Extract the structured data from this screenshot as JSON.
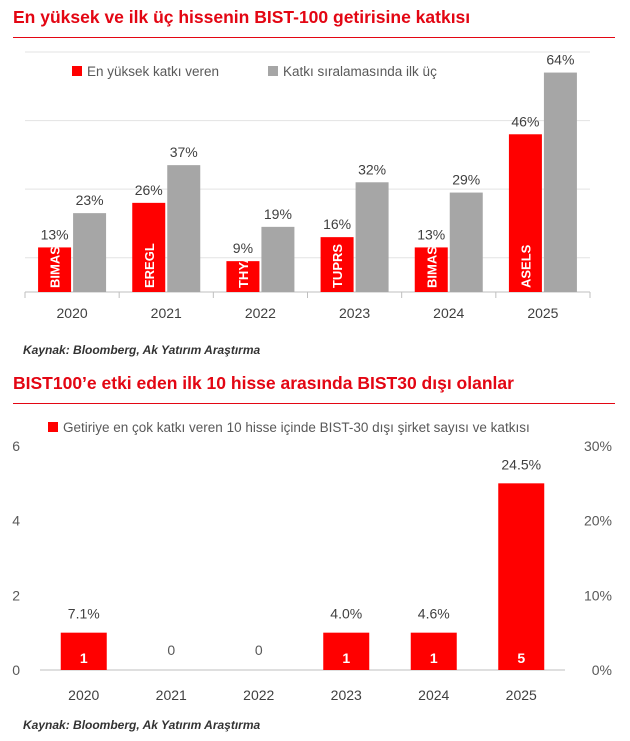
{
  "chart1": {
    "title": "En yüksek ve ilk üç hissenin BIST-100 getirisine katkısı",
    "source": "Kaynak: Bloomberg, Ak Yatırım Araştırma",
    "chart_data": {
      "type": "bar",
      "categories": [
        "2020",
        "2021",
        "2022",
        "2023",
        "2024",
        "2025"
      ],
      "series": [
        {
          "name": "En yüksek katkı veren",
          "color": "#ff0000",
          "values": [
            13,
            26,
            9,
            16,
            13,
            46
          ],
          "value_labels": [
            "13%",
            "26%",
            "9%",
            "16%",
            "13%",
            "46%"
          ],
          "stocks": [
            "BIMAS",
            "EREGL",
            "THYAO",
            "TUPRS",
            "BIMAS",
            "ASELS"
          ]
        },
        {
          "name": "Katkı sıralamasında ilk üç",
          "color": "#a6a6a6",
          "values": [
            23,
            37,
            19,
            32,
            29,
            64
          ],
          "value_labels": [
            "23%",
            "37%",
            "19%",
            "32%",
            "29%",
            "64%"
          ]
        }
      ],
      "ylim": [
        0,
        70
      ],
      "grid": true,
      "legend": "top-left"
    }
  },
  "chart2": {
    "title": "BIST100’e etki eden ilk 10 hisse arasında BIST30 dışı olanlar",
    "source": "Kaynak: Bloomberg, Ak Yatırım Araştırma",
    "chart_data": {
      "type": "bar",
      "categories": [
        "2020",
        "2021",
        "2022",
        "2023",
        "2024",
        "2025"
      ],
      "series": [
        {
          "name": "Getiriye en çok katkı veren 10 hisse içinde BIST-30 dışı şirket sayısı ve katkısı",
          "color": "#ff0000",
          "counts": [
            1,
            0,
            0,
            1,
            1,
            5
          ],
          "count_labels": [
            "1",
            "0",
            "0",
            "1",
            "1",
            "5"
          ],
          "contribution_pct": [
            7.1,
            0,
            0,
            4.0,
            4.6,
            24.5
          ],
          "contribution_labels": [
            "7.1%",
            "",
            "",
            "4.0%",
            "4.6%",
            "24.5%"
          ]
        }
      ],
      "y_left": {
        "range": [
          0,
          6
        ],
        "ticks": [
          "0",
          "2",
          "4",
          "6"
        ]
      },
      "y_right": {
        "range": [
          0,
          30
        ],
        "ticks": [
          "0%",
          "10%",
          "20%",
          "30%"
        ]
      },
      "grid": false,
      "legend": "top-left"
    }
  }
}
